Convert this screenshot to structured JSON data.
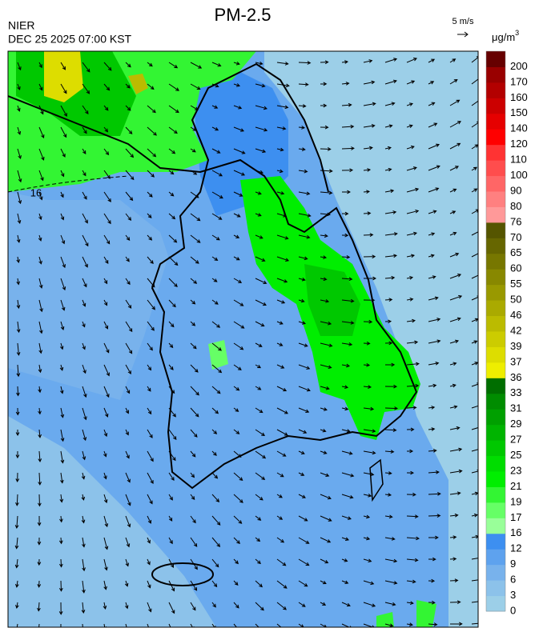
{
  "header": {
    "title": "PM-2.5",
    "agency": "NIER",
    "timestamp": "DEC 25 2025 07:00 KST",
    "wind_scale": "5 m/s"
  },
  "map": {
    "contour_label": "16"
  },
  "colorbar": {
    "unit": "μg/m",
    "unit_sup": "3",
    "levels": [
      0,
      3,
      6,
      9,
      12,
      16,
      17,
      19,
      21,
      23,
      25,
      27,
      29,
      31,
      33,
      36,
      37,
      39,
      42,
      46,
      50,
      55,
      60,
      65,
      70,
      76,
      80,
      90,
      100,
      110,
      120,
      140,
      150,
      160,
      170,
      200
    ],
    "colors": [
      "#9ccfe8",
      "#8cc2ea",
      "#78b2ec",
      "#5ea2ee",
      "#3d8ff0",
      "#99ff99",
      "#66ff66",
      "#33f533",
      "#00ee00",
      "#00dd00",
      "#00c800",
      "#00b400",
      "#00a000",
      "#008c00",
      "#006e00",
      "#eeee00",
      "#dddd00",
      "#cccc00",
      "#bbbb00",
      "#aaaa00",
      "#999900",
      "#888800",
      "#777700",
      "#666600",
      "#555500",
      "#ff9999",
      "#ff8080",
      "#ff6666",
      "#ff4d4d",
      "#ff3333",
      "#ff0000",
      "#e60000",
      "#cc0000",
      "#b30000",
      "#990000",
      "#660000"
    ]
  }
}
